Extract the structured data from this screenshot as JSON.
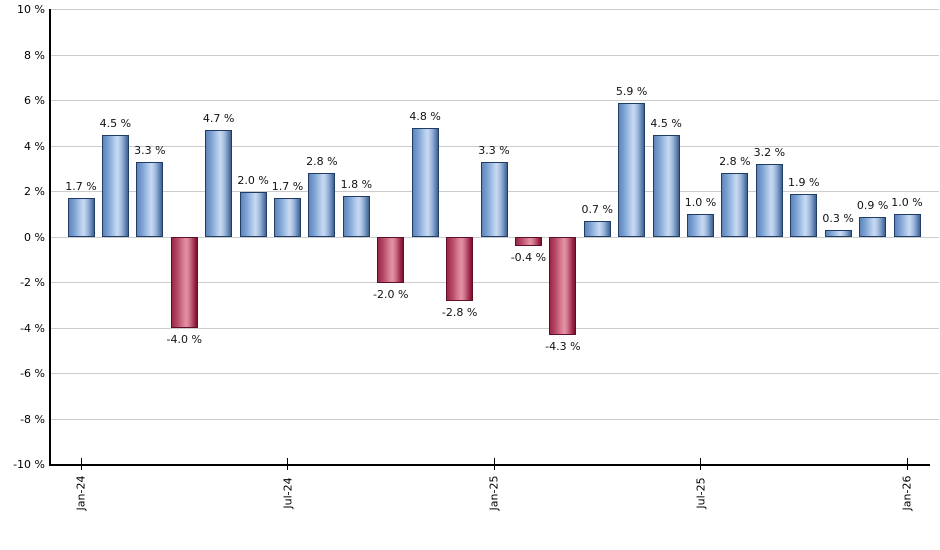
{
  "chart_data": {
    "type": "bar",
    "title": "",
    "xlabel": "",
    "ylabel": "",
    "ylim": [
      -10,
      10
    ],
    "grid": true,
    "legend": "none",
    "values": [
      1.7,
      4.5,
      3.3,
      -4.0,
      4.7,
      2.0,
      1.7,
      2.8,
      1.8,
      -2.0,
      4.8,
      -2.8,
      3.3,
      -0.4,
      -4.3,
      0.7,
      5.9,
      4.5,
      1.0,
      2.8,
      3.2,
      1.9,
      0.3,
      0.9,
      1.0
    ],
    "bar_labels": [
      "1.7 %",
      "4.5 %",
      "3.3 %",
      "-4.0 %",
      "4.7 %",
      "2.0 %",
      "1.7 %",
      "2.8 %",
      "1.8 %",
      "-2.0 %",
      "4.8 %",
      "-2.8 %",
      "3.3 %",
      "-0.4 %",
      "-4.3 %",
      "0.7 %",
      "5.9 %",
      "4.5 %",
      "1.0 %",
      "2.8 %",
      "3.2 %",
      "1.9 %",
      "0.3 %",
      "0.9 %",
      "1.0 %"
    ],
    "x_ticks": [
      {
        "label": "Jan-24",
        "index": 0
      },
      {
        "label": "Jul-24",
        "index": 6
      },
      {
        "label": "Jan-25",
        "index": 12
      },
      {
        "label": "Jul-25",
        "index": 18
      },
      {
        "label": "Jan-26",
        "index": 24
      }
    ],
    "y_ticks": [
      {
        "label": "10 %",
        "value": 10
      },
      {
        "label": "8 %",
        "value": 8
      },
      {
        "label": "6 %",
        "value": 6
      },
      {
        "label": "4 %",
        "value": 4
      },
      {
        "label": "2 %",
        "value": 2
      },
      {
        "label": "0 %",
        "value": 0
      },
      {
        "label": "-2 %",
        "value": -2
      },
      {
        "label": "-4 %",
        "value": -4
      },
      {
        "label": "-6 %",
        "value": -6
      },
      {
        "label": "-8 %",
        "value": -8
      },
      {
        "label": "-10 %",
        "value": -10
      }
    ],
    "colors": {
      "positive_fill": "#a9c4e8",
      "positive_border": "#1f3c66",
      "negative_fill": "#d4768d",
      "negative_border": "#5f0e29",
      "gridline": "#cccccc",
      "axis": "#000000",
      "label_text": "#111111",
      "background": "#ffffff"
    }
  }
}
